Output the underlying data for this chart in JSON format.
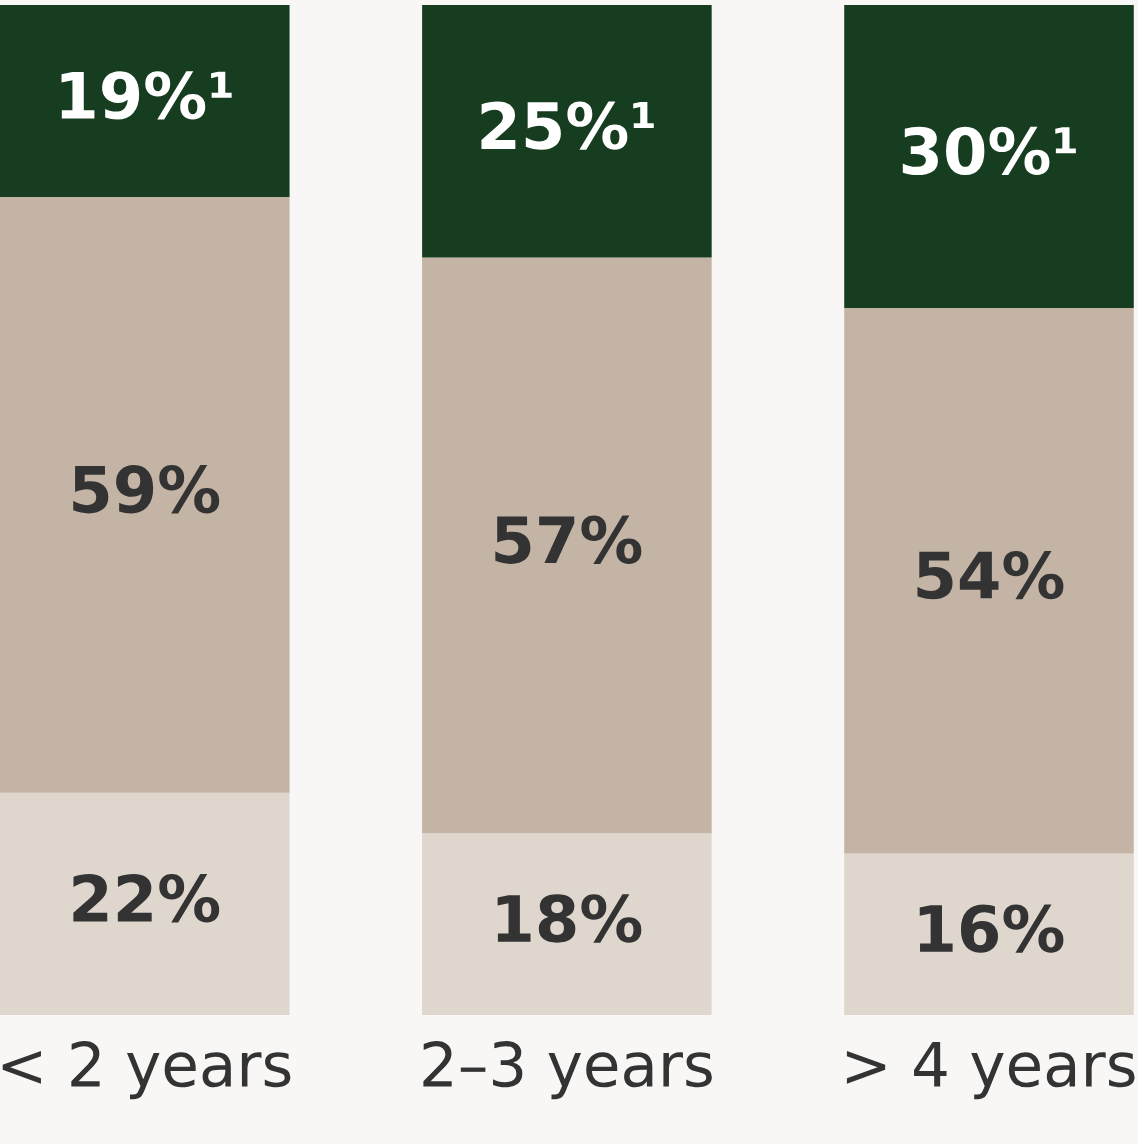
{
  "chart_data": {
    "type": "bar",
    "stacked": true,
    "categories": [
      "< 2 years",
      "2–3 years",
      "> 4 years"
    ],
    "series": [
      {
        "color": "#dfd6cd",
        "values": [
          22,
          18,
          16
        ],
        "value_labels": [
          "22%",
          "18%",
          "16%"
        ]
      },
      {
        "color": "#c4b4a5",
        "values": [
          59,
          57,
          54
        ],
        "value_labels": [
          "59%",
          "57%",
          "54%"
        ]
      },
      {
        "color": "#173d21",
        "values": [
          19,
          25,
          30
        ],
        "value_labels": [
          "19%¹",
          "25%¹",
          "30%¹"
        ]
      }
    ]
  }
}
